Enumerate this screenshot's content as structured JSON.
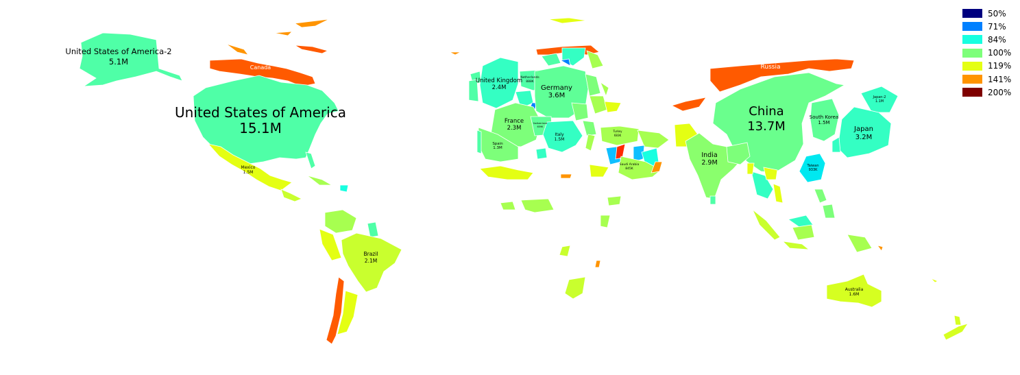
{
  "colors": {
    "scale_50": "#00007f",
    "scale_71": "#0080ff",
    "scale_84": "#17ffe0",
    "scale_100": "#7dff7a",
    "scale_119": "#e4ff13",
    "scale_141": "#ff9400",
    "scale_200": "#7f0000",
    "usa": "#4fffa7",
    "china": "#6aff8d",
    "russia": "#ff5a00",
    "canada": "#ff5a00",
    "brazil": "#c9ff2e",
    "japan": "#34ffc3",
    "uk": "#34ffc3",
    "germany": "#5fff97",
    "france": "#7dff7a",
    "india": "#8aff6d",
    "australia": "#d6ff21",
    "mexico": "#e4ff13",
    "saudi": "#a7ff50",
    "taiwan": "#00e8f0",
    "south_korea": "#5fff97"
  },
  "legend": [
    {
      "label": "50%",
      "color": "#00007f"
    },
    {
      "label": "71%",
      "color": "#0080ff"
    },
    {
      "label": "84%",
      "color": "#17ffe0"
    },
    {
      "label": "100%",
      "color": "#7dff7a"
    },
    {
      "label": "119%",
      "color": "#e4ff13"
    },
    {
      "label": "141%",
      "color": "#ff9400"
    },
    {
      "label": "200%",
      "color": "#7f0000"
    }
  ],
  "countries": {
    "usa": {
      "name": "United States of America",
      "value": "15.1M"
    },
    "usa2": {
      "name": "United States of America-2",
      "value": "5.1M"
    },
    "canada": {
      "name": "Canada",
      "value": ""
    },
    "russia": {
      "name": "Russia",
      "value": ""
    },
    "china": {
      "name": "China",
      "value": "13.7M"
    },
    "japan": {
      "name": "Japan",
      "value": "3.2M"
    },
    "japan2": {
      "name": "Japan-2",
      "value": "1.1M"
    },
    "south_korea": {
      "name": "South Korea",
      "value": "1.5M"
    },
    "taiwan": {
      "name": "Taiwan",
      "value": "933K"
    },
    "india": {
      "name": "India",
      "value": "2.9M"
    },
    "uk": {
      "name": "United Kingdom",
      "value": "2.4M"
    },
    "germany": {
      "name": "Germany",
      "value": "3.6M"
    },
    "france": {
      "name": "France",
      "value": "2.3M"
    },
    "netherlands": {
      "name": "Netherlands",
      "value": "888K"
    },
    "switzerland": {
      "name": "Switzerland",
      "value": "659K"
    },
    "spain": {
      "name": "Spain",
      "value": "1.3M"
    },
    "italy": {
      "name": "Italy",
      "value": "1.5M"
    },
    "turkey": {
      "name": "Turkey",
      "value": "683K"
    },
    "saudi": {
      "name": "Saudi Arabia",
      "value": "845K"
    },
    "mexico": {
      "name": "Mexico",
      "value": "1.5M"
    },
    "brazil": {
      "name": "Brazil",
      "value": "2.1M"
    },
    "australia": {
      "name": "Australia",
      "value": "1.6M"
    }
  }
}
